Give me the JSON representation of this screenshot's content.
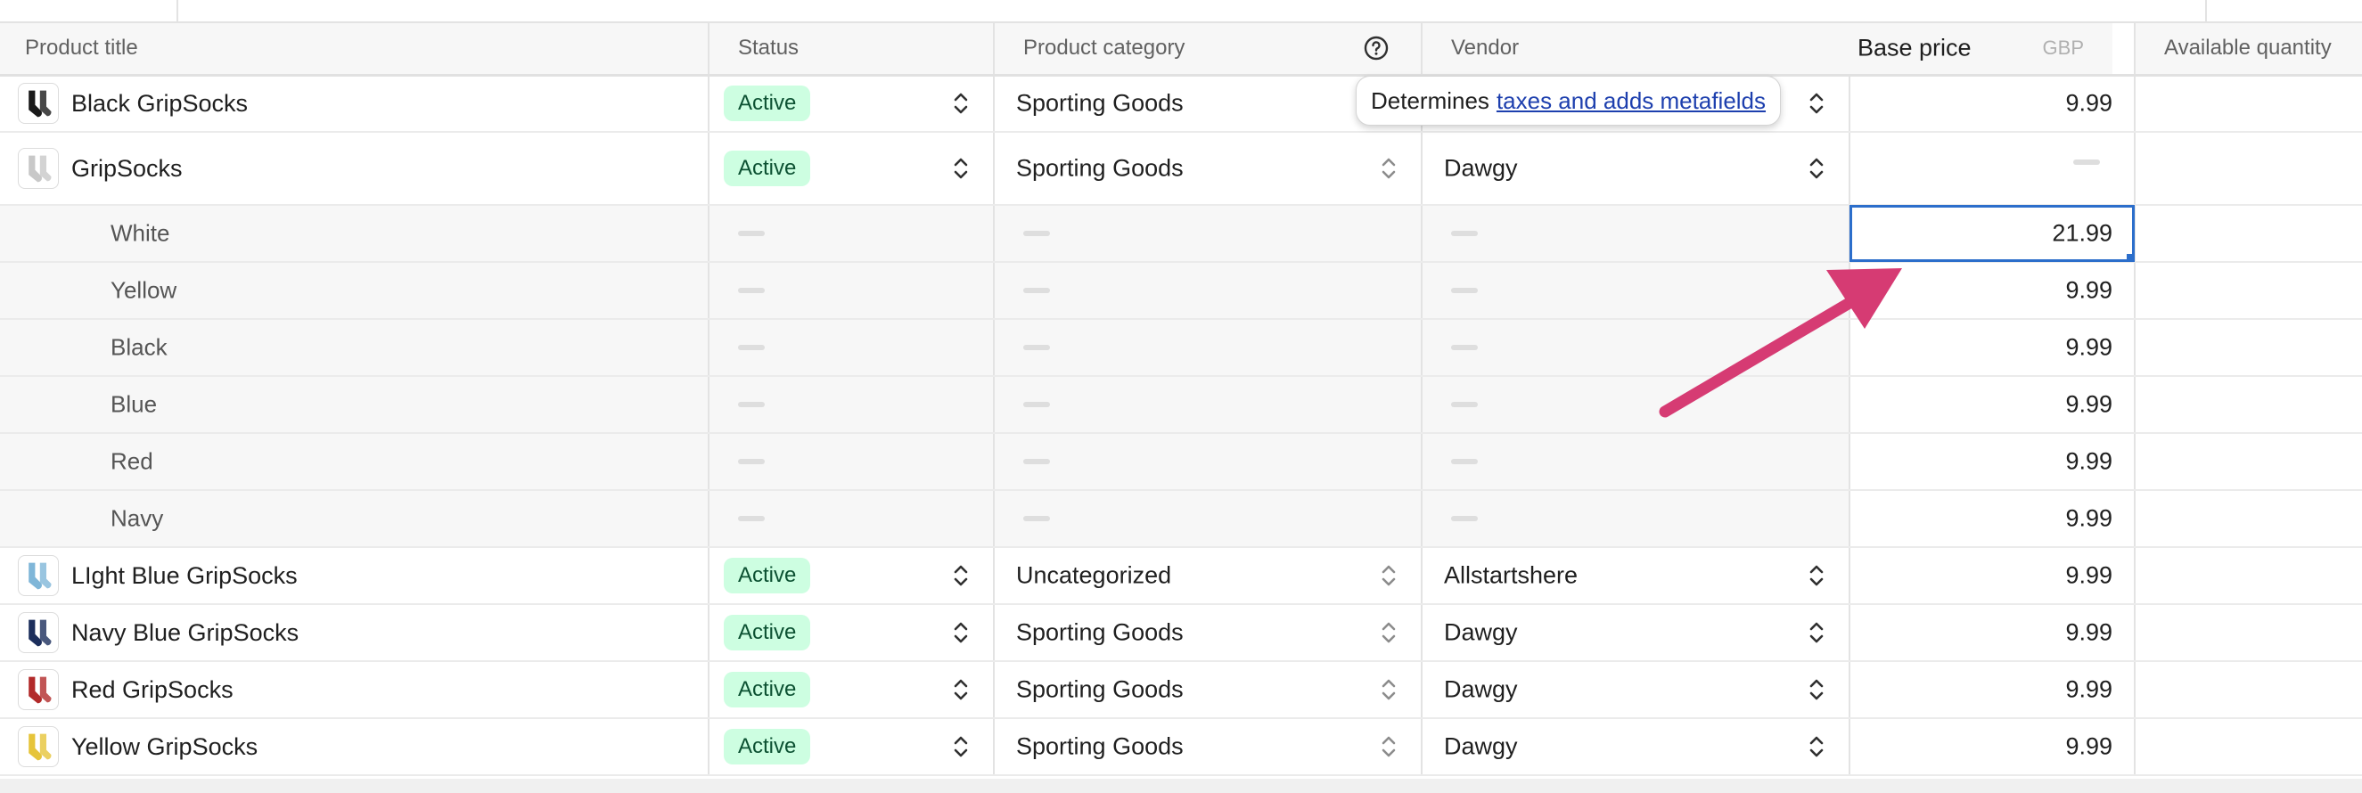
{
  "columns": {
    "title": "Product title",
    "status": "Status",
    "category": "Product category",
    "vendor": "Vendor",
    "price": "Base price",
    "currency": "GBP",
    "quantity": "Available quantity"
  },
  "tooltip": {
    "prefix": "Determines",
    "link": "taxes and adds metafields"
  },
  "rows": [
    {
      "title": "Black GripSocks",
      "status": "Active",
      "category": "Sporting Goods",
      "vendor": "",
      "price": "9.99",
      "thumb_color": "#1a1a1a"
    },
    {
      "title": "GripSocks",
      "status": "Active",
      "category": "Sporting Goods",
      "vendor": "Dawgy",
      "price": "",
      "thumb_color": "#c8c8c8"
    },
    {
      "title": "LIght Blue GripSocks",
      "status": "Active",
      "category": "Uncategorized",
      "vendor": "Allstartshere",
      "price": "9.99",
      "thumb_color": "#7fb6d8"
    },
    {
      "title": "Navy Blue GripSocks",
      "status": "Active",
      "category": "Sporting Goods",
      "vendor": "Dawgy",
      "price": "9.99",
      "thumb_color": "#1c2e5c"
    },
    {
      "title": "Red GripSocks",
      "status": "Active",
      "category": "Sporting Goods",
      "vendor": "Dawgy",
      "price": "9.99",
      "thumb_color": "#b22a2a"
    },
    {
      "title": "Yellow GripSocks",
      "status": "Active",
      "category": "Sporting Goods",
      "vendor": "Dawgy",
      "price": "9.99",
      "thumb_color": "#e6c43a"
    }
  ],
  "variants": [
    {
      "name": "White",
      "price": "21.99"
    },
    {
      "name": "Yellow",
      "price": "9.99"
    },
    {
      "name": "Black",
      "price": "9.99"
    },
    {
      "name": "Blue",
      "price": "9.99"
    },
    {
      "name": "Red",
      "price": "9.99"
    },
    {
      "name": "Navy",
      "price": "9.99"
    }
  ],
  "colors": {
    "accent": "#2c6ecb",
    "badge_bg": "#cdfee1",
    "badge_text": "#0c5132",
    "annotation_arrow": "#d63b73",
    "link": "#1d3fae"
  }
}
